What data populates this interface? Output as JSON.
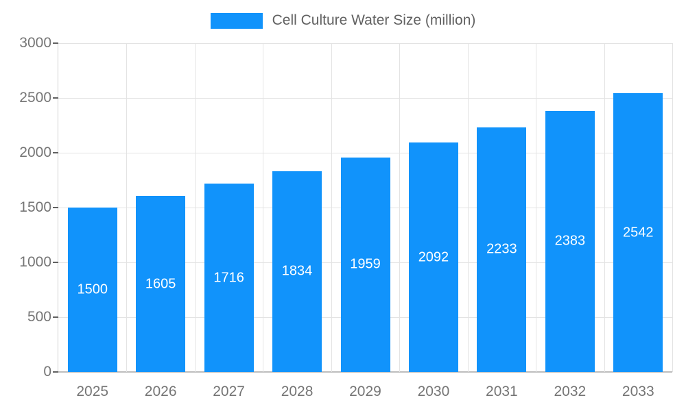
{
  "colors": {
    "bar": "#1193fb",
    "grid": "#e3e3e3",
    "axis": "#bdbdbd",
    "tick_text": "#757575",
    "value_label": "#ffffff",
    "legend_text": "#616161"
  },
  "chart_data": {
    "type": "bar",
    "title": "Cell Culture Water Size (million)",
    "xlabel": "",
    "ylabel": "",
    "categories": [
      "2025",
      "2026",
      "2027",
      "2028",
      "2029",
      "2030",
      "2031",
      "2032",
      "2033"
    ],
    "values": [
      1500,
      1605,
      1716,
      1834,
      1959,
      2092,
      2233,
      2383,
      2542
    ],
    "ylim": [
      0,
      3000
    ],
    "yticks": [
      0,
      500,
      1000,
      1500,
      2000,
      2500,
      3000
    ],
    "grid": true,
    "legend_position": "top",
    "value_label_position": "inside-center"
  }
}
